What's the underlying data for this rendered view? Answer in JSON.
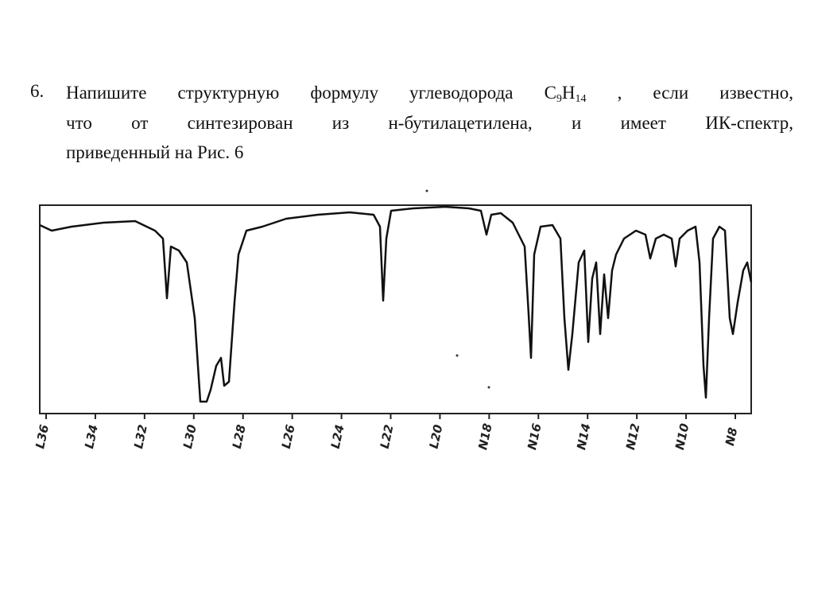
{
  "question": {
    "number": "6.",
    "line1": [
      "Напишите структурную формулу углеводорода C",
      "9",
      "H",
      "14",
      " , если известно,"
    ],
    "line2": "что от синтезирован из н-бутилацетилена, и имеет ИК-спектр,",
    "line3": "приведенный на Рис. 6"
  },
  "spectrum": {
    "tick_labels": [
      "L36",
      "L34",
      "L32",
      "L30",
      "L28",
      "L26",
      "L24",
      "L22",
      "L20",
      "N18",
      "N16",
      "N14",
      "N12",
      "N10",
      "N8"
    ]
  }
}
